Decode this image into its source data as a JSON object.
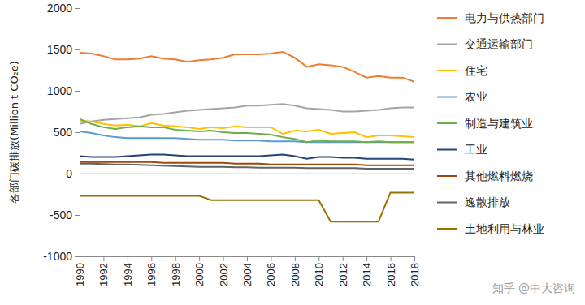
{
  "chart_data": {
    "type": "line",
    "y_label": "各部门碳排放(Million t CO₂e)",
    "annotations": [
      "知乎 @中大咨询"
    ],
    "x": [
      1990,
      1991,
      1992,
      1993,
      1994,
      1995,
      1996,
      1997,
      1998,
      1999,
      2000,
      2001,
      2002,
      2003,
      2004,
      2005,
      2006,
      2007,
      2008,
      2009,
      2010,
      2011,
      2012,
      2013,
      2014,
      2015,
      2016,
      2017,
      2018
    ],
    "xlim": [
      1990,
      2018
    ],
    "xticks": [
      1990,
      1992,
      1994,
      1996,
      1998,
      2000,
      2002,
      2004,
      2006,
      2008,
      2010,
      2012,
      2014,
      2016,
      2018
    ],
    "ylim": [
      -1000,
      2000
    ],
    "yticks": [
      -1000,
      -500,
      0,
      500,
      1000,
      1500,
      2000
    ],
    "grid": false,
    "legend": "right",
    "series": [
      {
        "name": "电力与供热部门",
        "color": "#ED7D31",
        "values": [
          1460,
          1450,
          1420,
          1380,
          1380,
          1390,
          1420,
          1390,
          1380,
          1350,
          1370,
          1380,
          1400,
          1440,
          1440,
          1440,
          1450,
          1470,
          1400,
          1290,
          1320,
          1310,
          1290,
          1230,
          1160,
          1180,
          1160,
          1160,
          1110
        ]
      },
      {
        "name": "交通运输部门",
        "color": "#A5A5A5",
        "values": [
          600,
          630,
          650,
          660,
          670,
          680,
          710,
          720,
          740,
          760,
          770,
          780,
          790,
          800,
          820,
          820,
          830,
          840,
          820,
          790,
          780,
          770,
          750,
          750,
          760,
          770,
          790,
          800,
          800
        ]
      },
      {
        "name": "住宅",
        "color": "#FFC000",
        "values": [
          640,
          630,
          600,
          580,
          590,
          570,
          610,
          580,
          570,
          560,
          540,
          560,
          550,
          570,
          560,
          560,
          560,
          480,
          520,
          510,
          530,
          480,
          490,
          500,
          440,
          460,
          460,
          450,
          440
        ]
      },
      {
        "name": "农业",
        "color": "#5B9BD5",
        "values": [
          510,
          490,
          460,
          440,
          430,
          430,
          430,
          430,
          430,
          420,
          410,
          410,
          410,
          400,
          400,
          400,
          390,
          390,
          390,
          380,
          380,
          380,
          380,
          380,
          380,
          380,
          380,
          380,
          380
        ]
      },
      {
        "name": "制造与建筑业",
        "color": "#70AD47",
        "values": [
          660,
          600,
          560,
          540,
          560,
          570,
          560,
          560,
          530,
          520,
          510,
          520,
          500,
          490,
          490,
          480,
          470,
          440,
          420,
          380,
          400,
          390,
          390,
          390,
          380,
          390,
          380,
          380,
          380
        ]
      },
      {
        "name": "工业",
        "color": "#264478",
        "values": [
          210,
          200,
          200,
          200,
          210,
          220,
          230,
          230,
          220,
          210,
          210,
          210,
          210,
          210,
          210,
          210,
          220,
          230,
          210,
          180,
          200,
          200,
          190,
          190,
          180,
          180,
          180,
          180,
          170
        ]
      },
      {
        "name": "其他燃料燃烧",
        "color": "#9E480E",
        "values": [
          140,
          140,
          140,
          140,
          140,
          140,
          140,
          130,
          130,
          130,
          130,
          130,
          130,
          120,
          120,
          120,
          110,
          110,
          110,
          110,
          110,
          110,
          110,
          110,
          100,
          100,
          100,
          100,
          100
        ]
      },
      {
        "name": "逸散排放",
        "color": "#636363",
        "values": [
          120,
          120,
          115,
          110,
          110,
          105,
          100,
          95,
          90,
          85,
          80,
          80,
          80,
          75,
          75,
          70,
          70,
          70,
          70,
          65,
          65,
          65,
          65,
          65,
          60,
          60,
          60,
          60,
          60
        ]
      },
      {
        "name": "土地利用与林业",
        "color": "#997300",
        "values": [
          -270,
          -270,
          -270,
          -270,
          -270,
          -270,
          -270,
          -270,
          -270,
          -270,
          -270,
          -320,
          -320,
          -320,
          -320,
          -320,
          -320,
          -320,
          -320,
          -320,
          -320,
          -580,
          -580,
          -580,
          -580,
          -580,
          -230,
          -230,
          -230
        ]
      }
    ]
  }
}
